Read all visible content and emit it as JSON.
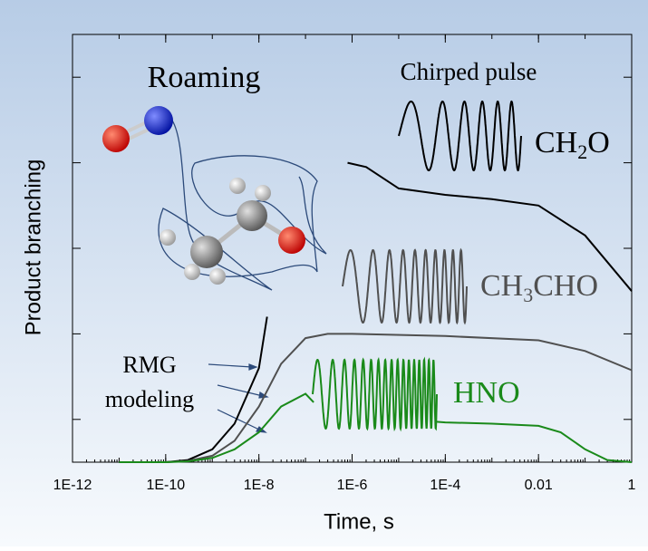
{
  "chart_data": {
    "type": "line",
    "title": "Roaming",
    "subtitle": "Chirped pulse",
    "annotations": [
      "RMG",
      "modeling"
    ],
    "xlabel": "Time, s",
    "ylabel": "Product branching",
    "xscale": "log",
    "xlim": [
      1e-12,
      1
    ],
    "xticks": [
      {
        "value": 1e-12,
        "label": "1E-12"
      },
      {
        "value": 1e-10,
        "label": "1E-10"
      },
      {
        "value": 1e-08,
        "label": "1E-8"
      },
      {
        "value": 1e-06,
        "label": "1E-6"
      },
      {
        "value": 0.0001,
        "label": "1E-4"
      },
      0.01,
      1
    ],
    "ylim": [
      0,
      1
    ],
    "yticks": [
      0.1,
      0.3,
      0.5,
      0.7,
      0.9
    ],
    "series": [
      {
        "name": "CH2O",
        "color": "#000000",
        "x": [
          1e-11,
          1e-10,
          3e-10,
          1e-09,
          3e-09,
          1e-08,
          1.5e-08,
          null,
          8e-07,
          2e-06,
          1e-05,
          0.0001,
          0.001,
          0.01,
          0.1,
          1
        ],
        "values": [
          0,
          0,
          0.005,
          0.03,
          0.09,
          0.22,
          0.34,
          null,
          0.7,
          0.69,
          0.64,
          0.625,
          0.615,
          0.6,
          0.53,
          0.4
        ]
      },
      {
        "name": "CH3CHO",
        "color": "#505050",
        "x": [
          1e-11,
          1e-10,
          3e-10,
          1e-09,
          3e-09,
          1e-08,
          3e-08,
          1e-07,
          3e-07,
          1e-06,
          0.0001,
          0.01,
          0.1,
          1
        ],
        "values": [
          0,
          0,
          0.003,
          0.015,
          0.05,
          0.13,
          0.23,
          0.29,
          0.3,
          0.3,
          0.295,
          0.285,
          0.26,
          0.215
        ]
      },
      {
        "name": "HNO",
        "color": "#1a8a1a",
        "x": [
          1e-11,
          1e-10,
          3e-10,
          1e-09,
          3e-09,
          1e-08,
          3e-08,
          1e-07,
          1.5e-07,
          null,
          6e-05,
          0.0001,
          0.001,
          0.01,
          0.03,
          0.1,
          0.3,
          1
        ],
        "values": [
          0,
          0,
          0.002,
          0.01,
          0.03,
          0.07,
          0.13,
          0.16,
          0.14,
          null,
          0.095,
          0.093,
          0.09,
          0.085,
          0.07,
          0.03,
          0.005,
          0
        ]
      }
    ]
  }
}
